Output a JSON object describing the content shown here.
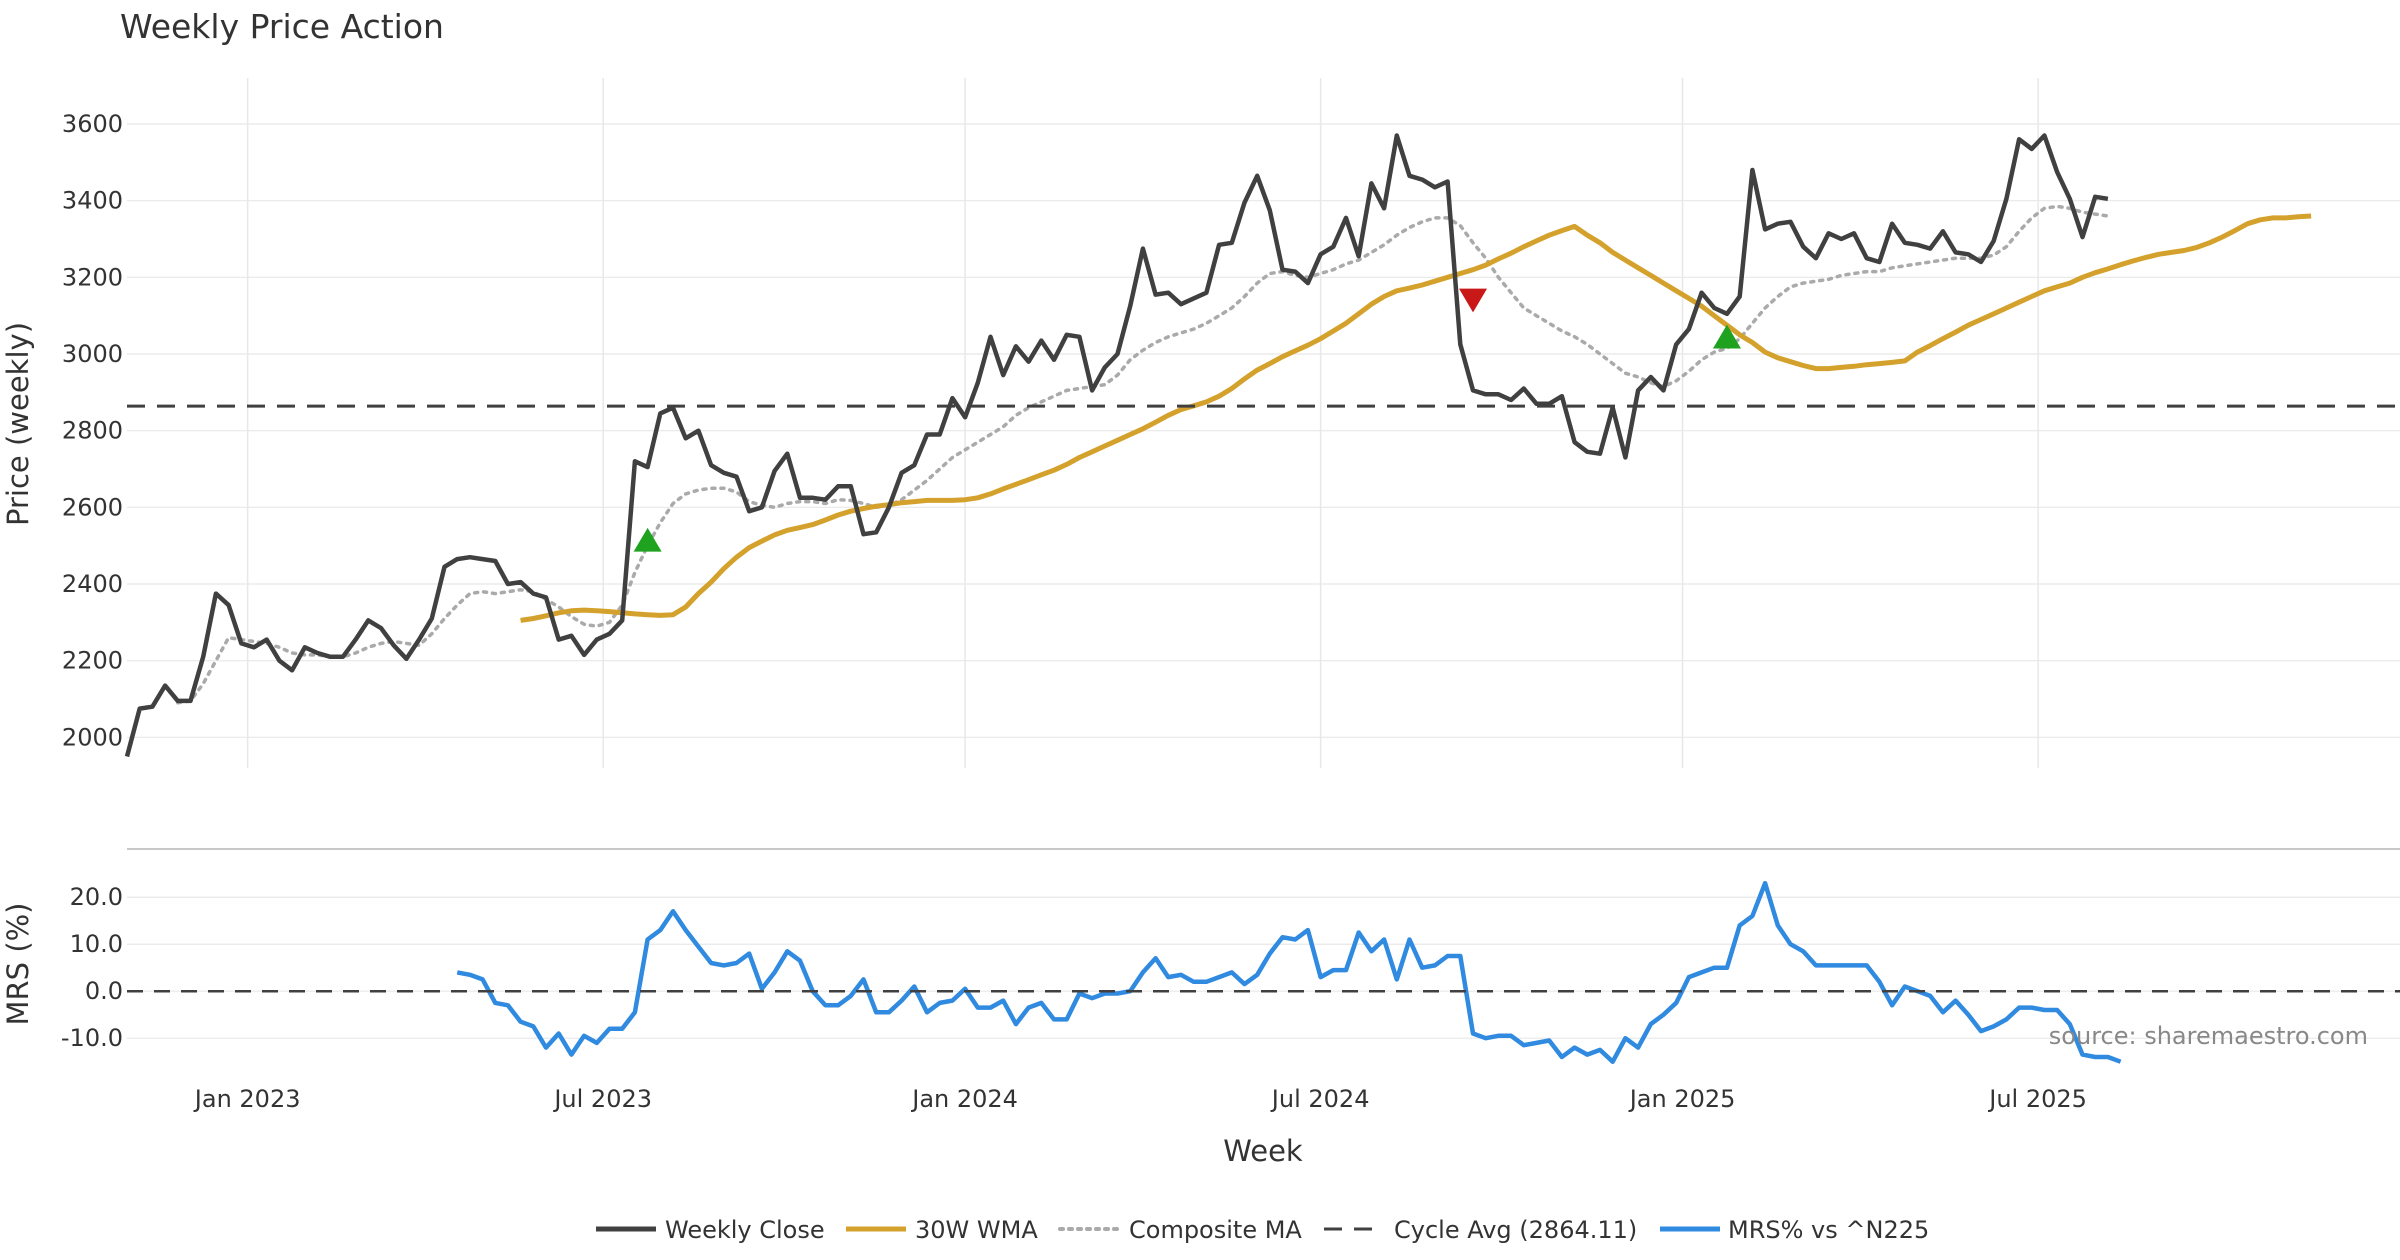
{
  "title": "Weekly Price Action",
  "source": "source: sharemaestro.com",
  "colors": {
    "close": "#404040",
    "wma": "#D4A22C",
    "composite": "#AAAAAA",
    "cycle": "#404040",
    "mrs": "#2F8AE0",
    "buy": "#1FA21F",
    "sell": "#C81818",
    "grid": "#E8E8E8"
  },
  "legend": {
    "close": "Weekly Close",
    "wma": "30W WMA",
    "composite": "Composite MA",
    "cycle": "Cycle Avg (2864.11)",
    "mrs": "MRS% vs ^N225"
  },
  "chart_data": [
    {
      "type": "line",
      "panel": "price",
      "title": "Weekly Price Action",
      "xlabel": "",
      "ylabel": "Price (weekly)",
      "yticks": [
        2000,
        2200,
        2400,
        2600,
        2800,
        3000,
        3200,
        3400,
        3600
      ],
      "ylim": [
        1920,
        3720
      ],
      "xlim": [
        0,
        179
      ],
      "x_ticks": [
        {
          "week": 9.5,
          "label": "Jan 2023"
        },
        {
          "week": 37.5,
          "label": "Jul 2023"
        },
        {
          "week": 66,
          "label": "Jan 2024"
        },
        {
          "week": 94,
          "label": "Jul 2024"
        },
        {
          "week": 122.5,
          "label": "Jan 2025"
        },
        {
          "week": 150.5,
          "label": "Jul 2025"
        }
      ],
      "grid": true,
      "legend_position": "bottom-center",
      "series": [
        {
          "name": "Weekly Close",
          "key": "close",
          "values": [
            1950,
            2075,
            2080,
            2135,
            2095,
            2095,
            2210,
            2375,
            2345,
            2245,
            2235,
            2255,
            2200,
            2175,
            2235,
            2220,
            2210,
            2210,
            2255,
            2305,
            2285,
            2240,
            2205,
            2255,
            2310,
            2445,
            2465,
            2470,
            2465,
            2460,
            2400,
            2405,
            2375,
            2365,
            2255,
            2265,
            2215,
            2255,
            2270,
            2305,
            2720,
            2705,
            2845,
            2860,
            2780,
            2800,
            2710,
            2690,
            2680,
            2590,
            2600,
            2695,
            2740,
            2625,
            2625,
            2620,
            2655,
            2655,
            2530,
            2535,
            2600,
            2690,
            2710,
            2790,
            2790,
            2885,
            2835,
            2925,
            3045,
            2945,
            3020,
            2980,
            3035,
            2985,
            3050,
            3045,
            2905,
            2965,
            3000,
            3125,
            3275,
            3155,
            3160,
            3130,
            3145,
            3160,
            3285,
            3290,
            3395,
            3465,
            3375,
            3220,
            3215,
            3185,
            3260,
            3280,
            3355,
            3255,
            3445,
            3380,
            3570,
            3465,
            3455,
            3435,
            3450,
            3025,
            2905,
            2895,
            2895,
            2880,
            2910,
            2870,
            2870,
            2890,
            2770,
            2745,
            2740,
            2860,
            2730,
            2905,
            2940,
            2905,
            3025,
            3065,
            3160,
            3120,
            3105,
            3150,
            3480,
            3325,
            3340,
            3345,
            3280,
            3250,
            3315,
            3300,
            3315,
            3250,
            3240,
            3340,
            3290,
            3285,
            3275,
            3320,
            3265,
            3260,
            3240,
            3295,
            3405,
            3560,
            3535,
            3570,
            3475,
            3405,
            3305,
            3410,
            3405
          ]
        },
        {
          "name": "30W WMA",
          "key": "wma",
          "start_week": 31,
          "values": [
            2305,
            2310,
            2317,
            2325,
            2330,
            2332,
            2330,
            2328,
            2325,
            2322,
            2320,
            2318,
            2320,
            2340,
            2375,
            2405,
            2440,
            2470,
            2495,
            2512,
            2528,
            2540,
            2547,
            2555,
            2567,
            2580,
            2590,
            2597,
            2603,
            2607,
            2612,
            2615,
            2618,
            2618,
            2618,
            2620,
            2625,
            2635,
            2648,
            2660,
            2672,
            2685,
            2697,
            2712,
            2730,
            2745,
            2760,
            2775,
            2790,
            2805,
            2822,
            2840,
            2855,
            2865,
            2875,
            2890,
            2910,
            2935,
            2958,
            2975,
            2993,
            3008,
            3023,
            3040,
            3060,
            3080,
            3105,
            3130,
            3150,
            3165,
            3172,
            3180,
            3190,
            3200,
            3210,
            3220,
            3232,
            3248,
            3263,
            3280,
            3295,
            3310,
            3322,
            3333,
            3310,
            3290,
            3265,
            3245,
            3225,
            3205,
            3185,
            3165,
            3145,
            3125,
            3100,
            3075,
            3050,
            3030,
            3005,
            2990,
            2980,
            2970,
            2962,
            2962,
            2965,
            2968,
            2972,
            2975,
            2978,
            2982,
            3005,
            3022,
            3040,
            3057,
            3075,
            3090,
            3105,
            3120,
            3135,
            3150,
            3165,
            3175,
            3185,
            3200,
            3212,
            3222,
            3233,
            3243,
            3252,
            3260,
            3265,
            3270,
            3278,
            3290,
            3305,
            3322,
            3340,
            3350,
            3355,
            3355,
            3358,
            3360
          ]
        },
        {
          "name": "Composite MA",
          "key": "composite",
          "values": [
            null,
            null,
            null,
            null,
            2090,
            2095,
            2140,
            2200,
            2260,
            2255,
            2250,
            2245,
            2235,
            2220,
            2215,
            2215,
            2210,
            2210,
            2220,
            2235,
            2245,
            2250,
            2245,
            2240,
            2270,
            2310,
            2345,
            2375,
            2380,
            2375,
            2380,
            2385,
            2380,
            2360,
            2340,
            2315,
            2295,
            2290,
            2300,
            2345,
            2430,
            2500,
            2560,
            2610,
            2635,
            2645,
            2650,
            2650,
            2640,
            2615,
            2605,
            2600,
            2610,
            2615,
            2615,
            2610,
            2620,
            2618,
            2610,
            2600,
            2605,
            2620,
            2645,
            2670,
            2700,
            2730,
            2750,
            2770,
            2790,
            2810,
            2840,
            2860,
            2875,
            2890,
            2905,
            2910,
            2915,
            2920,
            2945,
            2985,
            3010,
            3030,
            3045,
            3055,
            3065,
            3080,
            3100,
            3120,
            3150,
            3185,
            3210,
            3215,
            3205,
            3200,
            3210,
            3220,
            3235,
            3245,
            3265,
            3285,
            3310,
            3330,
            3345,
            3355,
            3355,
            3335,
            3290,
            3250,
            3200,
            3160,
            3120,
            3100,
            3080,
            3060,
            3045,
            3025,
            3000,
            2975,
            2950,
            2940,
            2925,
            2915,
            2930,
            2955,
            2985,
            3005,
            3015,
            3040,
            3080,
            3120,
            3150,
            3175,
            3185,
            3190,
            3195,
            3205,
            3210,
            3215,
            3215,
            3225,
            3230,
            3235,
            3240,
            3245,
            3250,
            3250,
            3250,
            3258,
            3280,
            3320,
            3355,
            3380,
            3385,
            3380,
            3370,
            3365,
            3360
          ]
        },
        {
          "name": "Cycle Avg (2864.11)",
          "key": "cycle",
          "constant": 2864.11
        }
      ],
      "markers": [
        {
          "type": "buy",
          "week": 41,
          "value": 2510
        },
        {
          "type": "sell",
          "week": 106,
          "value": 3145
        },
        {
          "type": "buy",
          "week": 126,
          "value": 3040
        }
      ]
    },
    {
      "type": "line",
      "panel": "mrs",
      "xlabel": "Week",
      "ylabel": "MRS (%)",
      "yticks": [
        -10.0,
        0.0,
        10.0,
        20.0
      ],
      "ylim": [
        -15.5,
        25.8
      ],
      "xlim": [
        0,
        179
      ],
      "grid": true,
      "series": [
        {
          "name": "MRS% vs ^N225",
          "key": "mrs",
          "start_week": 26,
          "values": [
            4.0,
            3.5,
            2.5,
            -2.5,
            -3.0,
            -6.5,
            -7.5,
            -12.0,
            -9.0,
            -13.5,
            -9.5,
            -11.0,
            -8.0,
            -8.0,
            -4.5,
            11.0,
            13.0,
            17.0,
            13.0,
            9.5,
            6.0,
            5.5,
            6.0,
            8.0,
            0.5,
            4.0,
            8.5,
            6.5,
            0.0,
            -3.0,
            -3.0,
            -1.0,
            2.5,
            -4.5,
            -4.5,
            -2.0,
            1.0,
            -4.5,
            -2.5,
            -2.0,
            0.5,
            -3.5,
            -3.5,
            -2.0,
            -7.0,
            -3.5,
            -2.5,
            -6.0,
            -6.0,
            -0.5,
            -1.5,
            -0.5,
            -0.5,
            0.0,
            4.0,
            7.0,
            3.0,
            3.5,
            2.0,
            2.0,
            3.0,
            4.0,
            1.5,
            3.5,
            8.0,
            11.5,
            11.0,
            13.0,
            3.0,
            4.5,
            4.5,
            12.5,
            8.5,
            11.0,
            2.5,
            11.0,
            5.0,
            5.5,
            7.5,
            7.5,
            -9.0,
            -10.0,
            -9.5,
            -9.5,
            -11.5,
            -11.0,
            -10.5,
            -14.0,
            -12.0,
            -13.5,
            -12.5,
            -15.0,
            -10.0,
            -12.0,
            -7.0,
            -5.0,
            -2.5,
            3.0,
            4.0,
            5.0,
            5.0,
            14.0,
            16.0,
            23.0,
            14.0,
            10.0,
            8.5,
            5.5,
            5.5,
            5.5,
            5.5,
            5.5,
            2.0,
            -3.0,
            1.0,
            0.0,
            -1.0,
            -4.5,
            -2.0,
            -5.0,
            -8.5,
            -7.5,
            -6.0,
            -3.5,
            -3.5,
            -4.0,
            -4.0,
            -7.0,
            -13.5,
            -14.0,
            -14.0,
            -15.0
          ]
        },
        {
          "name": "Zero line",
          "key": "zero",
          "constant": 0.0
        }
      ]
    }
  ]
}
